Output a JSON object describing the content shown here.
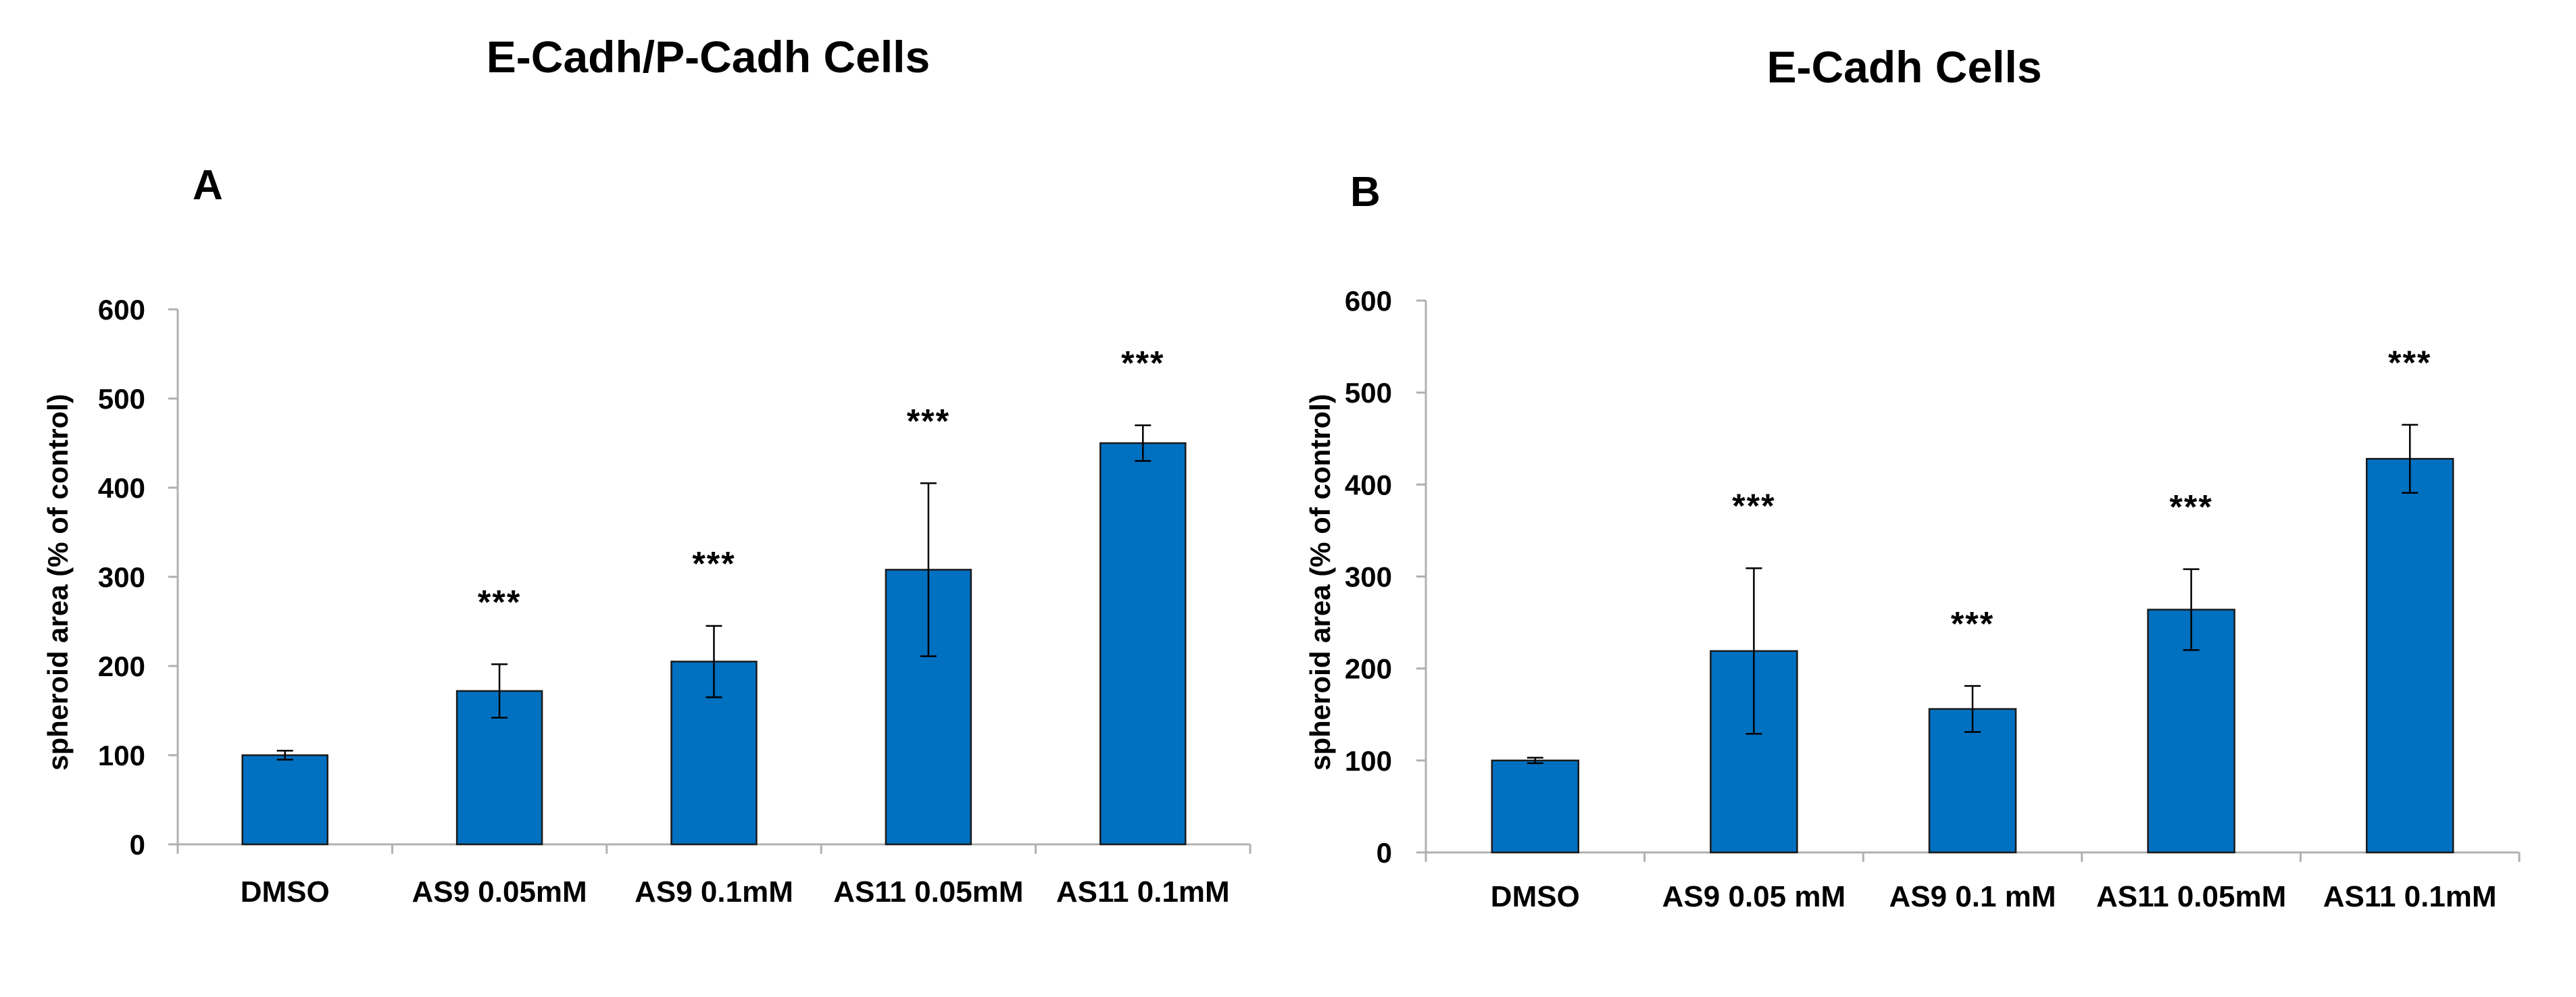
{
  "chart_data": [
    {
      "type": "bar",
      "panel_label": "A",
      "title": "E-Cadh/P-Cadh Cells",
      "ylabel": "spheroid area (% of control)",
      "xlabel": "",
      "ylim": [
        0,
        600
      ],
      "yticks": [
        0,
        100,
        200,
        300,
        400,
        500,
        600
      ],
      "categories": [
        "DMSO",
        "AS9 0.05mM",
        "AS9 0.1mM",
        "AS11 0.05mM",
        "AS11 0.1mM"
      ],
      "values": [
        100,
        172,
        205,
        308,
        450
      ],
      "error": [
        5,
        30,
        40,
        97,
        20
      ],
      "annotations": [
        "",
        "***",
        "***",
        "***",
        "***"
      ],
      "bar_color": "#0070c0",
      "grid": false
    },
    {
      "type": "bar",
      "panel_label": "B",
      "title": "E-Cadh Cells",
      "ylabel": "spheroid area (% of control)",
      "xlabel": "",
      "ylim": [
        0,
        600
      ],
      "yticks": [
        0,
        100,
        200,
        300,
        400,
        500,
        600
      ],
      "categories": [
        "DMSO",
        "AS9 0.05 mM",
        "AS9 0.1 mM",
        "AS11 0.05mM",
        "AS11 0.1mM"
      ],
      "values": [
        100,
        219,
        156,
        264,
        428
      ],
      "error": [
        3,
        90,
        25,
        44,
        37
      ],
      "annotations": [
        "",
        "***",
        "***",
        "***",
        "***"
      ],
      "bar_color": "#0070c0",
      "grid": false
    }
  ]
}
